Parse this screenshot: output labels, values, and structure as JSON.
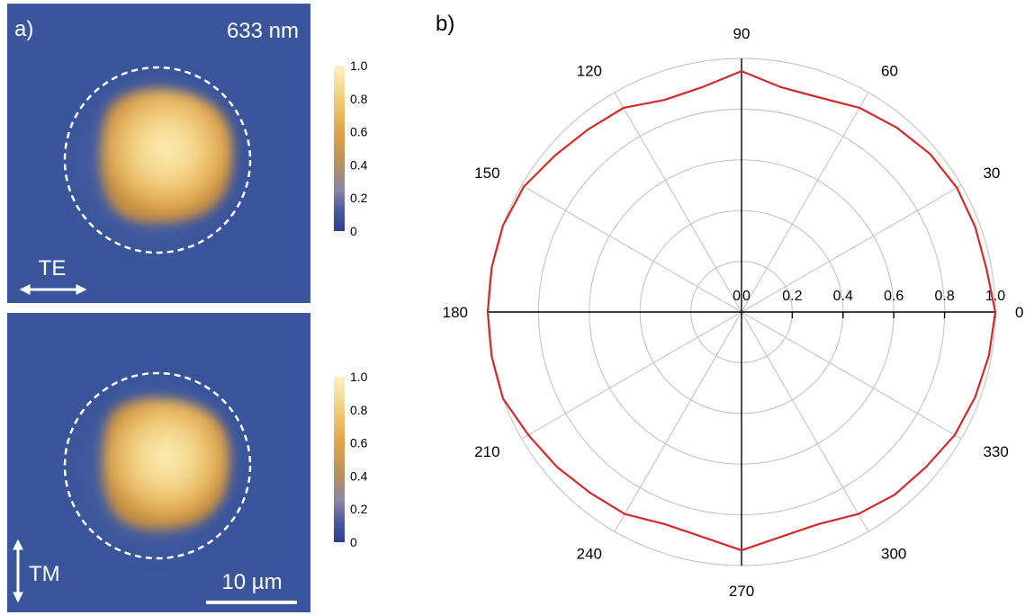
{
  "panels": {
    "a_label": "a)",
    "b_label": "b)"
  },
  "heatmaps": [
    {
      "wavelength_label": "633 nm",
      "polarization_label": "TE",
      "colorbar_ticks": [
        "1.0",
        "0.8",
        "0.6",
        "0.4",
        "0.2",
        "0"
      ],
      "colors": {
        "background": "#3b559c",
        "core_light": "#fbe7a4",
        "core_mid": "#edc06a",
        "core_edge": "#cf9945"
      }
    },
    {
      "polarization_label": "TM",
      "scale_bar_label": "10 µm",
      "colorbar_ticks": [
        "1.0",
        "0.8",
        "0.6",
        "0.4",
        "0.2",
        "0"
      ],
      "colors": {
        "background": "#3b559c",
        "core_light": "#fbe7a4",
        "core_mid": "#edc06a",
        "core_edge": "#cf9945"
      }
    }
  ],
  "chart_data": {
    "type": "line",
    "subtype": "polar",
    "title": "",
    "radial_ticks": [
      {
        "value": 0,
        "label": "0"
      },
      {
        "value": 0,
        "label": "0"
      },
      {
        "value": 0.2,
        "label": "0.2"
      },
      {
        "value": 0.4,
        "label": "0.4"
      },
      {
        "value": 0.6,
        "label": "0.6"
      },
      {
        "value": 0.8,
        "label": "0.8"
      },
      {
        "value": 1.0,
        "label": "1.0"
      }
    ],
    "rlim": [
      0,
      1.0
    ],
    "radial_grid": [
      0.2,
      0.4,
      0.6,
      0.8,
      1.0
    ],
    "angle_ticks": [
      {
        "value": 0,
        "label": "0"
      },
      {
        "value": 30,
        "label": "30"
      },
      {
        "value": 60,
        "label": "60"
      },
      {
        "value": 90,
        "label": "90"
      },
      {
        "value": 120,
        "label": "120"
      },
      {
        "value": 150,
        "label": "150"
      },
      {
        "value": 180,
        "label": "180"
      },
      {
        "value": 210,
        "label": "210"
      },
      {
        "value": 240,
        "label": "240"
      },
      {
        "value": 270,
        "label": "270"
      },
      {
        "value": 300,
        "label": "300"
      },
      {
        "value": 330,
        "label": "330"
      }
    ],
    "grid": true,
    "series": [
      {
        "color": "#d42a2a",
        "theta": [
          0,
          10,
          20,
          30,
          40,
          50,
          60,
          70,
          80,
          90,
          100,
          110,
          120,
          130,
          140,
          150,
          160,
          170,
          180,
          190,
          200,
          210,
          220,
          230,
          240,
          250,
          260,
          270,
          280,
          290,
          300,
          310,
          320,
          330,
          340,
          350
        ],
        "r": [
          1.0,
          0.98,
          0.98,
          0.98,
          0.97,
          0.95,
          0.93,
          0.9,
          0.9,
          0.95,
          0.9,
          0.89,
          0.93,
          0.94,
          0.96,
          0.99,
          1.0,
          1.0,
          1.0,
          1.0,
          1.0,
          0.97,
          0.95,
          0.93,
          0.92,
          0.89,
          0.9,
          0.94,
          0.9,
          0.89,
          0.92,
          0.94,
          0.95,
          0.97,
          0.98,
          0.99
        ]
      }
    ]
  }
}
